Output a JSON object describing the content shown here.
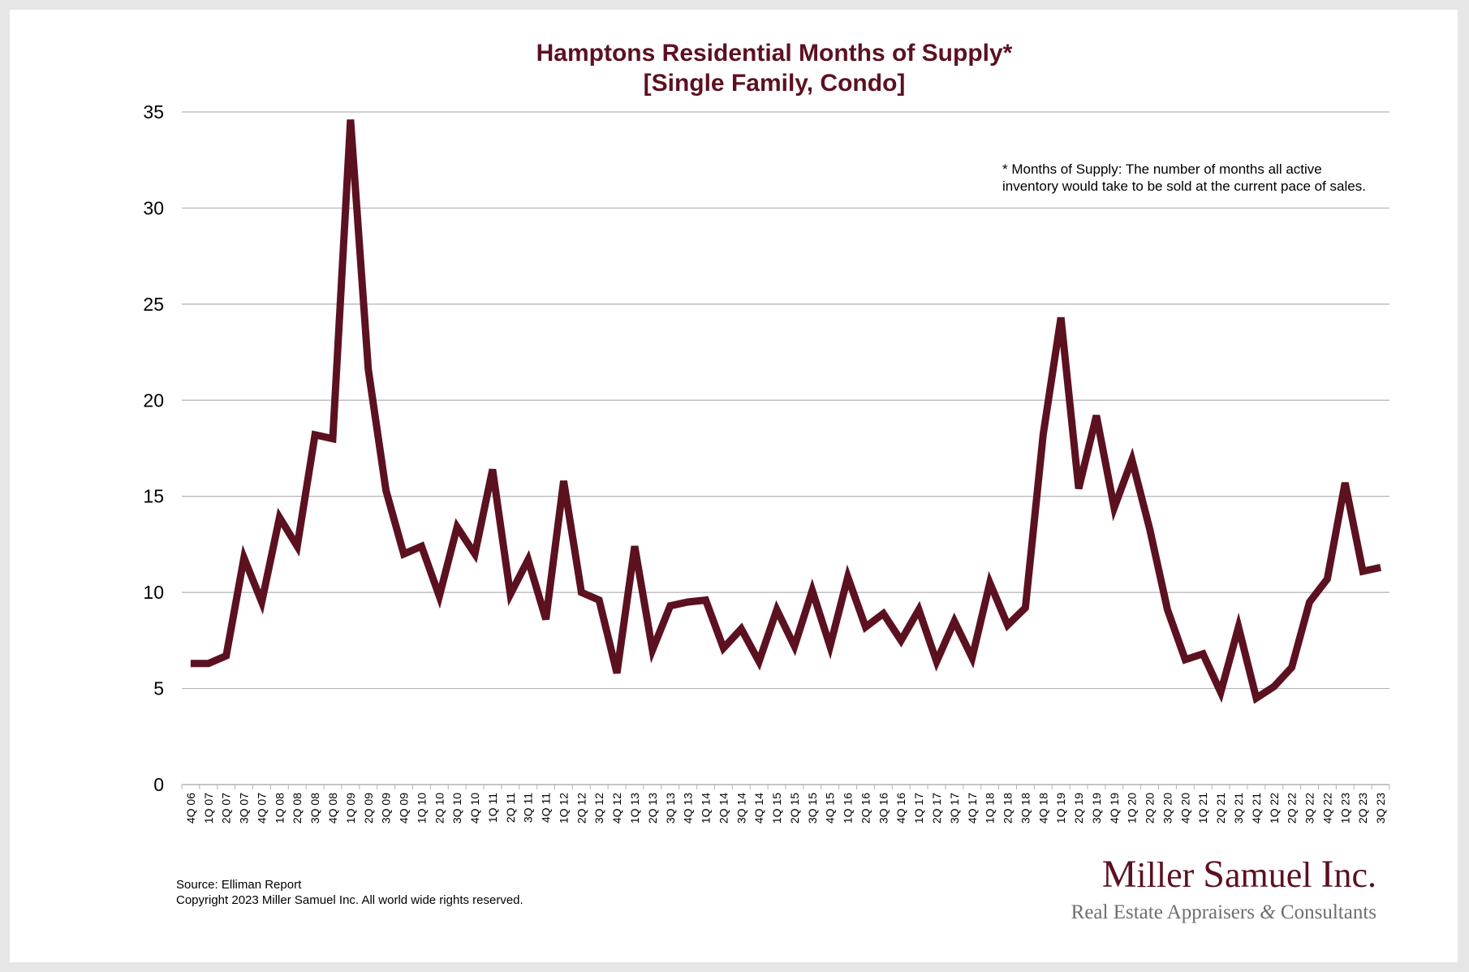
{
  "colors": {
    "line": "#5c1120",
    "title": "#5c1120",
    "grid": "#b3b3b3",
    "logo_sub": "#6e6e6e"
  },
  "chart_data": {
    "type": "line",
    "title": "Hamptons Residential Months of Supply*",
    "subtitle": "[Single Family, Condo]",
    "ylim": [
      0,
      35
    ],
    "yticks": [
      0,
      5,
      10,
      15,
      20,
      25,
      30,
      35
    ],
    "grid": "horizontal",
    "categories": [
      "4Q 06",
      "1Q 07",
      "2Q 07",
      "3Q 07",
      "4Q 07",
      "1Q 08",
      "2Q 08",
      "3Q 08",
      "4Q 08",
      "1Q 09",
      "2Q 09",
      "3Q 09",
      "4Q 09",
      "1Q 10",
      "2Q 10",
      "3Q 10",
      "4Q 10",
      "1Q 11",
      "2Q 11",
      "3Q 11",
      "4Q 11",
      "1Q 12",
      "2Q 12",
      "3Q 12",
      "4Q 12",
      "1Q 13",
      "2Q 13",
      "3Q 13",
      "4Q 13",
      "1Q 14",
      "2Q 14",
      "3Q 14",
      "4Q 14",
      "1Q 15",
      "2Q 15",
      "3Q 15",
      "4Q 15",
      "1Q 16",
      "2Q 16",
      "3Q 16",
      "4Q 16",
      "1Q 17",
      "2Q 17",
      "3Q 17",
      "4Q 17",
      "1Q 18",
      "2Q 18",
      "3Q 18",
      "4Q 18",
      "1Q 19",
      "2Q 19",
      "3Q 19",
      "4Q 19",
      "1Q 20",
      "2Q 20",
      "3Q 20",
      "4Q 20",
      "1Q 21",
      "2Q 21",
      "3Q 21",
      "4Q 21",
      "1Q 22",
      "2Q 22",
      "3Q 22",
      "4Q 22",
      "1Q 23",
      "2Q 23",
      "3Q 23"
    ],
    "series": [
      {
        "values": [
          6.3,
          6.3,
          6.7,
          11.8,
          9.5,
          13.9,
          12.4,
          18.2,
          18.0,
          34.6,
          21.6,
          15.3,
          12.0,
          12.4,
          9.8,
          13.4,
          12.0,
          16.4,
          9.9,
          11.7,
          8.6,
          15.8,
          10.0,
          9.6,
          5.8,
          12.4,
          7.0,
          9.3,
          9.5,
          9.6,
          7.1,
          8.1,
          6.4,
          9.1,
          7.2,
          10.1,
          7.2,
          10.8,
          8.2,
          8.9,
          7.5,
          9.1,
          6.4,
          8.5,
          6.6,
          10.5,
          8.3,
          9.2,
          18.2,
          24.3,
          15.4,
          19.2,
          14.4,
          16.9,
          13.3,
          9.1,
          6.5,
          6.8,
          4.8,
          8.2,
          4.5,
          5.1,
          6.1,
          9.5,
          10.7,
          15.7,
          11.1,
          11.3
        ]
      }
    ],
    "annotation": [
      "* Months of Supply: The number of months all active",
      "inventory would take to be sold at the current pace of sales."
    ]
  },
  "footer": {
    "source": "Source: Elliman Report",
    "copyright": "Copyright 2023 Miller Samuel Inc.  All world wide rights reserved."
  },
  "logo": {
    "main_caps": [
      "M",
      "S",
      "I"
    ],
    "main_rest": [
      "iller ",
      "amuel ",
      "nc."
    ],
    "sub_before": "Real Estate Appraisers ",
    "ampersand": "&",
    "sub_after": " Consultants"
  }
}
